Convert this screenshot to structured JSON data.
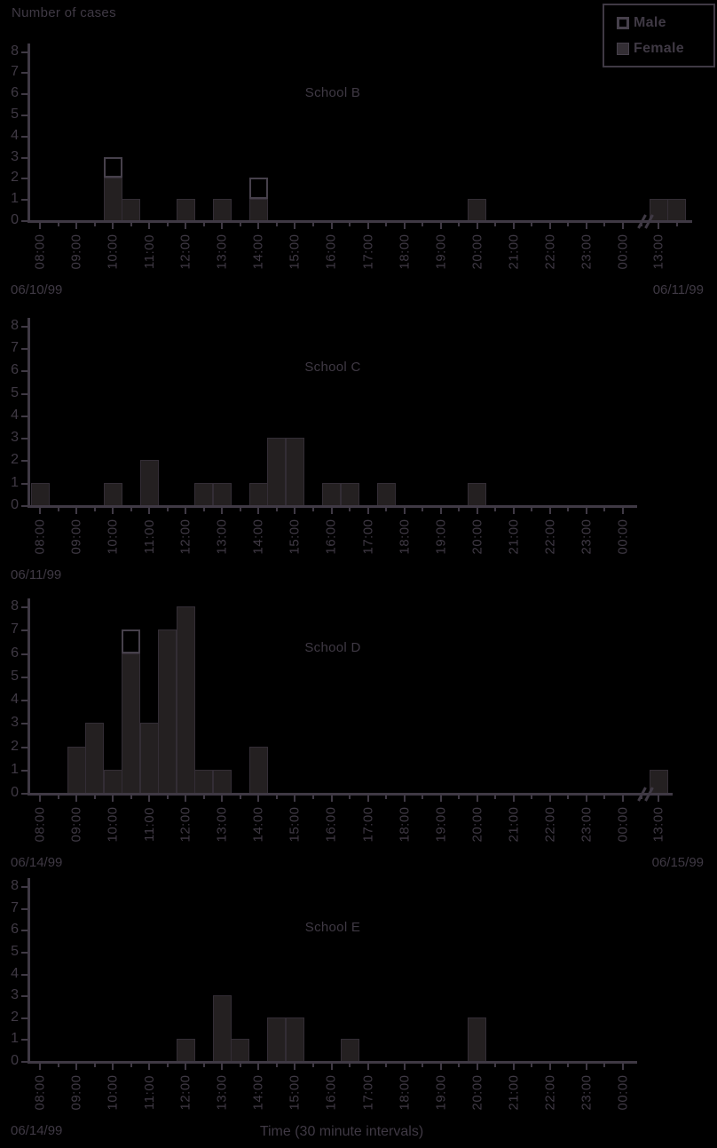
{
  "figure": {
    "y_axis_title": "Number of cases",
    "x_axis_title": "Time (30 minute intervals)"
  },
  "legend": {
    "items": [
      {
        "label": "Male",
        "swatch": "open-square"
      },
      {
        "label": "Female",
        "swatch": "filled-square"
      }
    ]
  },
  "colors": {
    "background": "#000000",
    "ink": "#3f3944",
    "bar_fill": "#242021",
    "male_fill": "#000000"
  },
  "chart_data": [
    {
      "type": "bar",
      "title": "School B",
      "stacked_series": [
        "Female",
        "Male"
      ],
      "interval_minutes": 30,
      "ylim": [
        0,
        8
      ],
      "y_tick_labels": [
        "0",
        "1",
        "2",
        "3",
        "4",
        "5",
        "6",
        "7",
        "8"
      ],
      "x_tick_labels": [
        "08:00",
        "09:00",
        "10:00",
        "11:00",
        "12:00",
        "13:00",
        "14:00",
        "15:00",
        "16:00",
        "17:00",
        "18:00",
        "19:00",
        "20:00",
        "21:00",
        "22:00",
        "23:00",
        "00:00"
      ],
      "axis_break": true,
      "x_tick_labels_after_break": [
        "13:00"
      ],
      "date_left": "06/10/99",
      "date_right": "06/11/99",
      "bars": [
        {
          "time": "10:00",
          "female": 2,
          "male": 1
        },
        {
          "time": "10:30",
          "female": 1,
          "male": 0
        },
        {
          "time": "12:00",
          "female": 1,
          "male": 0
        },
        {
          "time": "13:00",
          "female": 1,
          "male": 0
        },
        {
          "time": "14:00",
          "female": 1,
          "male": 1
        },
        {
          "time": "20:00",
          "female": 1,
          "male": 0
        },
        {
          "time": "13:00",
          "next_day": true,
          "female": 1,
          "male": 0
        },
        {
          "time": "13:30",
          "next_day": true,
          "female": 1,
          "male": 0
        }
      ]
    },
    {
      "type": "bar",
      "title": "School C",
      "stacked_series": [
        "Female",
        "Male"
      ],
      "interval_minutes": 30,
      "ylim": [
        0,
        8
      ],
      "y_tick_labels": [
        "0",
        "1",
        "2",
        "3",
        "4",
        "5",
        "6",
        "7",
        "8"
      ],
      "x_tick_labels": [
        "08:00",
        "09:00",
        "10:00",
        "11:00",
        "12:00",
        "13:00",
        "14:00",
        "15:00",
        "16:00",
        "17:00",
        "18:00",
        "19:00",
        "20:00",
        "21:00",
        "22:00",
        "23:00",
        "00:00"
      ],
      "axis_break": false,
      "x_tick_labels_after_break": [],
      "date_left": "06/11/99",
      "date_right": "",
      "bars": [
        {
          "time": "08:00",
          "female": 1,
          "male": 0
        },
        {
          "time": "10:00",
          "female": 1,
          "male": 0
        },
        {
          "time": "11:00",
          "female": 2,
          "male": 0
        },
        {
          "time": "12:30",
          "female": 1,
          "male": 0
        },
        {
          "time": "13:00",
          "female": 1,
          "male": 0
        },
        {
          "time": "14:00",
          "female": 1,
          "male": 0
        },
        {
          "time": "14:30",
          "female": 3,
          "male": 0
        },
        {
          "time": "15:00",
          "female": 3,
          "male": 0
        },
        {
          "time": "16:00",
          "female": 1,
          "male": 0
        },
        {
          "time": "16:30",
          "female": 1,
          "male": 0
        },
        {
          "time": "17:30",
          "female": 1,
          "male": 0
        },
        {
          "time": "20:00",
          "female": 1,
          "male": 0
        }
      ]
    },
    {
      "type": "bar",
      "title": "School D",
      "stacked_series": [
        "Female",
        "Male"
      ],
      "interval_minutes": 30,
      "ylim": [
        0,
        8
      ],
      "y_tick_labels": [
        "0",
        "1",
        "2",
        "3",
        "4",
        "5",
        "6",
        "7",
        "8"
      ],
      "x_tick_labels": [
        "08:00",
        "09:00",
        "10:00",
        "11:00",
        "12:00",
        "13:00",
        "14:00",
        "15:00",
        "16:00",
        "17:00",
        "18:00",
        "19:00",
        "20:00",
        "21:00",
        "22:00",
        "23:00",
        "00:00"
      ],
      "axis_break": true,
      "x_tick_labels_after_break": [
        "13:00"
      ],
      "date_left": "06/14/99",
      "date_right": "06/15/99",
      "bars": [
        {
          "time": "09:00",
          "female": 2,
          "male": 0
        },
        {
          "time": "09:30",
          "female": 3,
          "male": 0
        },
        {
          "time": "10:00",
          "female": 1,
          "male": 0
        },
        {
          "time": "10:30",
          "female": 6,
          "male": 1
        },
        {
          "time": "11:00",
          "female": 3,
          "male": 0
        },
        {
          "time": "11:30",
          "female": 7,
          "male": 0
        },
        {
          "time": "12:00",
          "female": 8,
          "male": 0
        },
        {
          "time": "12:30",
          "female": 1,
          "male": 0
        },
        {
          "time": "13:00",
          "female": 1,
          "male": 0
        },
        {
          "time": "14:00",
          "female": 2,
          "male": 0
        },
        {
          "time": "13:00",
          "next_day": true,
          "female": 1,
          "male": 0
        }
      ]
    },
    {
      "type": "bar",
      "title": "School E",
      "stacked_series": [
        "Female",
        "Male"
      ],
      "interval_minutes": 30,
      "ylim": [
        0,
        8
      ],
      "y_tick_labels": [
        "0",
        "1",
        "2",
        "3",
        "4",
        "5",
        "6",
        "7",
        "8"
      ],
      "x_tick_labels": [
        "08:00",
        "09:00",
        "10:00",
        "11:00",
        "12:00",
        "13:00",
        "14:00",
        "15:00",
        "16:00",
        "17:00",
        "18:00",
        "19:00",
        "20:00",
        "21:00",
        "22:00",
        "23:00",
        "00:00"
      ],
      "axis_break": false,
      "x_tick_labels_after_break": [],
      "date_left": "06/14/99",
      "date_right": "",
      "bars": [
        {
          "time": "12:00",
          "female": 1,
          "male": 0
        },
        {
          "time": "13:00",
          "female": 3,
          "male": 0
        },
        {
          "time": "13:30",
          "female": 1,
          "male": 0
        },
        {
          "time": "14:30",
          "female": 2,
          "male": 0
        },
        {
          "time": "15:00",
          "female": 2,
          "male": 0
        },
        {
          "time": "16:30",
          "female": 1,
          "male": 0
        },
        {
          "time": "20:00",
          "female": 2,
          "male": 0
        }
      ]
    }
  ]
}
